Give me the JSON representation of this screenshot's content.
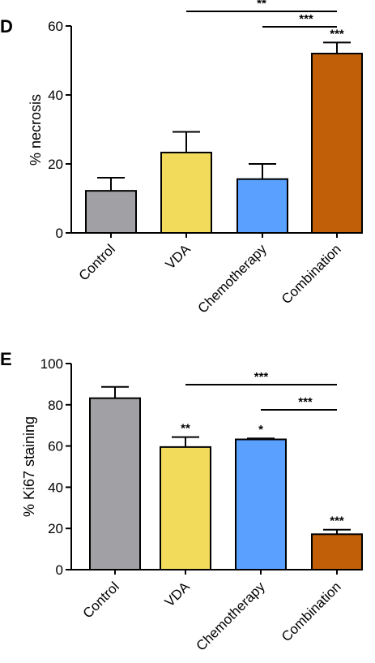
{
  "chart_data": [
    {
      "type": "bar",
      "panel": "D",
      "ylabel": "% necrosis",
      "ylim": [
        0,
        60
      ],
      "yticks": [
        0,
        20,
        40,
        60
      ],
      "categories": [
        "Control",
        "VDA",
        "Chemotherapy",
        "Combination"
      ],
      "values": [
        12.2,
        23.3,
        15.6,
        52
      ],
      "errors": [
        3.8,
        6,
        4.4,
        3.2
      ],
      "colors": [
        "#a0a0a5",
        "#f2da5a",
        "#5aa0ff",
        "#c05f08"
      ],
      "bar_annotations": [
        "",
        "",
        "",
        "***"
      ],
      "comparisons": [
        {
          "from": 1,
          "to": 3,
          "label": "**"
        },
        {
          "from": 2,
          "to": 3,
          "label": "***"
        }
      ]
    },
    {
      "type": "bar",
      "panel": "E",
      "ylabel": "% Ki67 staining",
      "ylim": [
        0,
        100
      ],
      "yticks": [
        0,
        20,
        40,
        60,
        80,
        100
      ],
      "categories": [
        "Control",
        "VDA",
        "Chemotherapy",
        "Combination"
      ],
      "values": [
        83.2,
        59.5,
        63.2,
        17.2
      ],
      "errors": [
        5.5,
        4.8,
        0.5,
        2.2
      ],
      "colors": [
        "#a0a0a5",
        "#f2da5a",
        "#5aa0ff",
        "#c05f08"
      ],
      "bar_annotations": [
        "",
        "**",
        "*",
        "***"
      ],
      "comparisons": [
        {
          "from": 1,
          "to": 3,
          "label": "***"
        },
        {
          "from": 2,
          "to": 3,
          "label": "***"
        }
      ]
    }
  ]
}
